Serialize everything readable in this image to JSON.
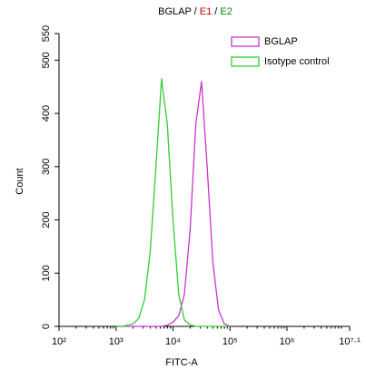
{
  "chart_data": {
    "type": "line",
    "title": [
      "BGLAP",
      " / ",
      "E1",
      " / ",
      "E2"
    ],
    "title_colors": [
      "#000000",
      "#000000",
      "#cc0000",
      "#000000",
      "#008800"
    ],
    "x_label": "FITC-A",
    "y_label": "Count",
    "x_scale": "log",
    "x": [
      1000,
      1259,
      1585,
      1995,
      2512,
      3162,
      3981,
      5012,
      6310,
      7943,
      10000,
      12589,
      15849,
      19953,
      25119,
      31623,
      39811,
      50119,
      63096,
      79433,
      100000
    ],
    "series": [
      {
        "name": "BGLAP",
        "color": "#cc33cc",
        "values": [
          0,
          0,
          0,
          0,
          0,
          0,
          0,
          0,
          0,
          2,
          8,
          20,
          60,
          180,
          380,
          460,
          300,
          120,
          30,
          5,
          0
        ]
      },
      {
        "name": "Isotype control",
        "color": "#33cc33",
        "values": [
          0,
          0,
          2,
          5,
          15,
          50,
          140,
          300,
          465,
          380,
          200,
          60,
          12,
          3,
          0,
          0,
          0,
          0,
          0,
          0,
          0
        ]
      }
    ],
    "xlim": [
      100,
      12589254
    ],
    "xticks": [
      {
        "value": 100,
        "label": "10²"
      },
      {
        "value": 1000,
        "label": "10³"
      },
      {
        "value": 10000,
        "label": "10⁴"
      },
      {
        "value": 100000,
        "label": "10⁵"
      },
      {
        "value": 1000000,
        "label": "10⁶"
      },
      {
        "value": 12589254,
        "label": "10⁷·¹"
      }
    ],
    "ylim": [
      0,
      550
    ],
    "yticks": [
      0,
      100,
      200,
      300,
      400,
      500,
      550
    ],
    "legend": "upper right"
  }
}
